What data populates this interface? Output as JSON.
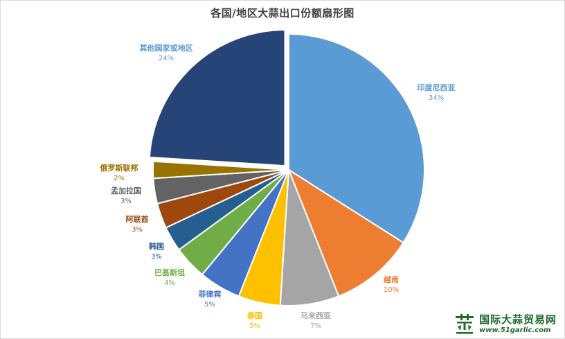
{
  "chart_data": {
    "type": "pie",
    "title": "各国/地区大蒜出口份额扇形图",
    "legend": "none (labels next to slices)",
    "exploded_slice": "其他国家或地区",
    "slices": [
      {
        "label": "印度尼西亚",
        "value": 34,
        "pct_label": "34%",
        "color": "#5b9bd5"
      },
      {
        "label": "越南",
        "value": 10,
        "pct_label": "10%",
        "color": "#ed7d31"
      },
      {
        "label": "马来西亚",
        "value": 7,
        "pct_label": "7%",
        "color": "#a5a5a5"
      },
      {
        "label": "泰国",
        "value": 5,
        "pct_label": "5%",
        "color": "#ffc000"
      },
      {
        "label": "菲律宾",
        "value": 5,
        "pct_label": "5%",
        "color": "#4472c4"
      },
      {
        "label": "巴基斯坦",
        "value": 4,
        "pct_label": "4%",
        "color": "#70ad47"
      },
      {
        "label": "韩国",
        "value": 3,
        "pct_label": "3%",
        "color": "#255e91"
      },
      {
        "label": "阿联酋",
        "value": 3,
        "pct_label": "3%",
        "color": "#9e480e"
      },
      {
        "label": "孟加拉国",
        "value": 3,
        "pct_label": "3%",
        "color": "#636363"
      },
      {
        "label": "俄罗斯联邦",
        "value": 2,
        "pct_label": "2%",
        "color": "#997300"
      },
      {
        "label": "其他国家或地区",
        "value": 24,
        "pct_label": "24%",
        "color": "#264478"
      }
    ],
    "label_colors": {
      "印度尼西亚": "#5b9bd5",
      "越南": "#ed7d31",
      "马来西亚": "#a5a5a5",
      "泰国": "#ffc000",
      "菲律宾": "#4472c4",
      "巴基斯坦": "#70ad47",
      "韩国": "#255e91",
      "阿联酋": "#9e480e",
      "孟加拉国": "#636363",
      "俄罗斯联邦": "#997300",
      "其他国家或地区": "#5b9bd5"
    }
  },
  "watermark": {
    "name": "国际大蒜贸易网",
    "url": "www.51garlic.com",
    "brand_color": "#1f6b2c",
    "icon": "garlic-logo-icon"
  }
}
